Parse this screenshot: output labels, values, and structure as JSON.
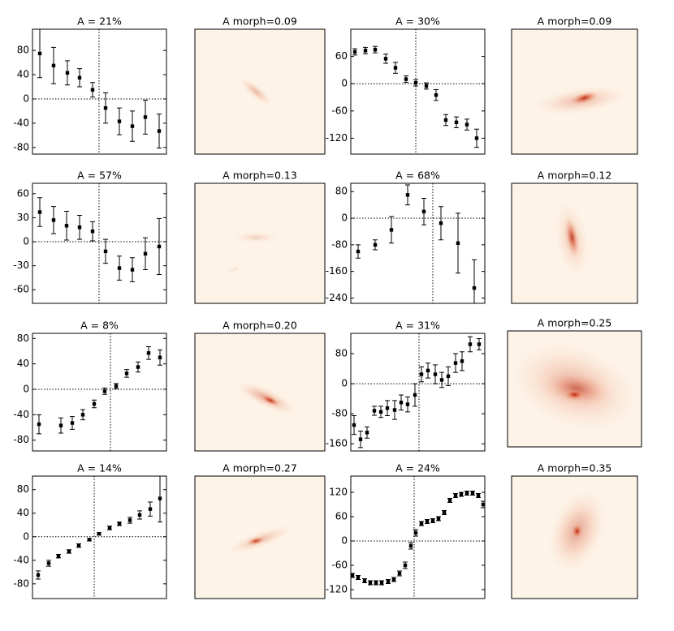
{
  "chart_data": [
    {
      "type": "errorbar",
      "title": "A = 21%",
      "color": "#000000",
      "x": [
        -73,
        -56,
        -39,
        -24,
        -8,
        8,
        25,
        41,
        57,
        74
      ],
      "values": [
        75,
        55,
        43,
        35,
        15,
        -15,
        -37,
        -45,
        -30,
        -53
      ],
      "errors": [
        40,
        30,
        20,
        15,
        12,
        25,
        22,
        25,
        28,
        28
      ],
      "xlim": [
        -82,
        83
      ],
      "ylim": [
        -91,
        115
      ],
      "yticks": [
        80,
        40,
        0,
        -40,
        -80
      ]
    },
    {
      "type": "image",
      "title": "A morph=0.09"
    },
    {
      "type": "errorbar",
      "title": "A = 30%",
      "color": "#000000",
      "x": [
        -75,
        -62,
        -50,
        -37,
        -25,
        -12,
        0,
        13,
        25,
        37,
        50,
        63,
        75
      ],
      "values": [
        70,
        73,
        75,
        55,
        35,
        10,
        2,
        -5,
        -25,
        -80,
        -85,
        -90,
        -120
      ],
      "errors": [
        7,
        7,
        7,
        10,
        12,
        7,
        7,
        7,
        12,
        12,
        12,
        12,
        20
      ],
      "xlim": [
        -80,
        85
      ],
      "ylim": [
        -155,
        120
      ],
      "yticks": [
        60,
        0,
        -60,
        -120
      ]
    },
    {
      "type": "image",
      "title": "A morph=0.09"
    },
    {
      "type": "errorbar",
      "title": "A = 57%",
      "color": "#000000",
      "x": [
        -73,
        -56,
        -40,
        -24,
        -8,
        8,
        25,
        41,
        57,
        74
      ],
      "values": [
        37,
        27,
        20,
        18,
        13,
        -12,
        -33,
        -35,
        -15,
        -6
      ],
      "errors": [
        18,
        17,
        18,
        15,
        12,
        15,
        15,
        15,
        20,
        35
      ],
      "xlim": [
        -82,
        83
      ],
      "ylim": [
        -77,
        73
      ],
      "yticks": [
        60,
        30,
        0,
        -30,
        -60
      ]
    },
    {
      "type": "image",
      "title": "A morph=0.13"
    },
    {
      "type": "errorbar",
      "title": "A = 68%",
      "color": "#000000",
      "x": [
        -92,
        -71,
        -51,
        -31,
        -11,
        10,
        31,
        51
      ],
      "values": [
        -100,
        -80,
        -35,
        70,
        20,
        -15,
        -75,
        -210
      ],
      "errors": [
        20,
        15,
        40,
        30,
        40,
        50,
        90,
        85
      ],
      "xlim": [
        -101,
        64
      ],
      "ylim": [
        -256,
        105
      ],
      "yticks": [
        80,
        0,
        -80,
        -160,
        -240
      ]
    },
    {
      "type": "image",
      "title": "A morph=0.12"
    },
    {
      "type": "errorbar",
      "title": "A = 8%",
      "color": "#000000",
      "x": [
        -88,
        -61,
        -47,
        -34,
        -20,
        -7,
        7,
        20,
        34,
        47,
        61
      ],
      "values": [
        -55,
        -57,
        -53,
        -40,
        -23,
        -3,
        5,
        25,
        35,
        57,
        50
      ],
      "errors": [
        15,
        12,
        10,
        8,
        6,
        5,
        4,
        6,
        8,
        10,
        12
      ],
      "xlim": [
        -96,
        69
      ],
      "ylim": [
        -97,
        88
      ],
      "yticks": [
        80,
        40,
        0,
        -40,
        -80
      ]
    },
    {
      "type": "image",
      "title": "A morph=0.20"
    },
    {
      "type": "errorbar",
      "title": "A = 31%",
      "color": "#000000",
      "x": [
        -80,
        -72,
        -64,
        -55,
        -47,
        -39,
        -30,
        -22,
        -14,
        -5,
        3,
        11,
        20,
        28,
        36,
        45,
        53,
        63,
        74
      ],
      "values": [
        -110,
        -148,
        -130,
        -72,
        -75,
        -65,
        -70,
        -50,
        -55,
        -30,
        25,
        35,
        25,
        10,
        20,
        55,
        60,
        105,
        105
      ],
      "errors": [
        25,
        22,
        15,
        12,
        15,
        20,
        25,
        20,
        20,
        30,
        20,
        20,
        25,
        20,
        25,
        25,
        25,
        20,
        15
      ],
      "xlim": [
        -84,
        81
      ],
      "ylim": [
        -179,
        134
      ],
      "yticks": [
        80,
        0,
        -80,
        -160
      ]
    },
    {
      "type": "image",
      "title": "A morph=0.25"
    },
    {
      "type": "errorbar",
      "title": "A = 14%",
      "color": "#000000",
      "x": [
        -69,
        -56,
        -44,
        -31,
        -19,
        -6,
        6,
        19,
        31,
        44,
        56,
        69,
        81
      ],
      "values": [
        -65,
        -45,
        -33,
        -25,
        -15,
        -5,
        5,
        15,
        22,
        28,
        37,
        47,
        65
      ],
      "errors": [
        7,
        5,
        3,
        3,
        3,
        2,
        2,
        3,
        3,
        5,
        7,
        12,
        40
      ],
      "xlim": [
        -76,
        89
      ],
      "ylim": [
        -105,
        103
      ],
      "yticks": [
        80,
        40,
        0,
        -40,
        -80
      ]
    },
    {
      "type": "image",
      "title": "A morph=0.27"
    },
    {
      "type": "errorbar",
      "title": "A = 24%",
      "color": "#000000",
      "x": [
        -76,
        -69,
        -61,
        -54,
        -47,
        -40,
        -32,
        -25,
        -18,
        -11,
        -4,
        2,
        9,
        16,
        23,
        30,
        37,
        44,
        51,
        58,
        65,
        72,
        79,
        85
      ],
      "values": [
        -85,
        -90,
        -98,
        -103,
        -103,
        -103,
        -100,
        -95,
        -80,
        -60,
        -12,
        20,
        43,
        48,
        50,
        55,
        70,
        100,
        112,
        115,
        118,
        118,
        112,
        90
      ],
      "errors": [
        5,
        5,
        5,
        5,
        5,
        5,
        5,
        5,
        6,
        8,
        8,
        8,
        5,
        5,
        5,
        5,
        5,
        5,
        5,
        5,
        5,
        5,
        5,
        8
      ],
      "xlim": [
        -78,
        87
      ],
      "ylim": [
        -142,
        160
      ],
      "yticks": [
        120,
        60,
        0,
        -60,
        -120
      ]
    },
    {
      "type": "image",
      "title": "A morph=0.35"
    }
  ]
}
